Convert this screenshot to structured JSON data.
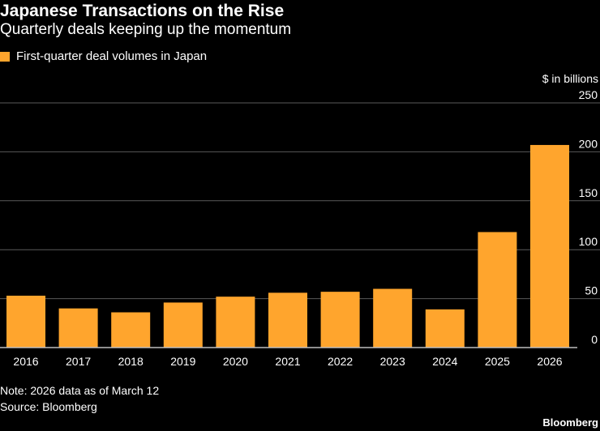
{
  "header": {
    "title": "Japanese Transactions on the Rise",
    "subtitle": "Quarterly deals keeping up the momentum"
  },
  "legend": {
    "label": "First-quarter deal volumes in Japan"
  },
  "footer": {
    "note": "Note: 2026 data as of March 12",
    "source": "Source: Bloomberg",
    "brand": "Bloomberg"
  },
  "colors": {
    "background": "#000000",
    "bar": "#FFA52D",
    "grid": "#5a5a5a",
    "text": "#ffffff"
  },
  "chart_data": {
    "type": "bar",
    "title": "Japanese Transactions on the Rise",
    "subtitle": "Quarterly deals keeping up the momentum",
    "ylabel": "$ in billions",
    "xlabel": "",
    "categories": [
      "2016",
      "2017",
      "2018",
      "2019",
      "2020",
      "2021",
      "2022",
      "2023",
      "2024",
      "2025",
      "2026"
    ],
    "series": [
      {
        "name": "First-quarter deal volumes in Japan",
        "values": [
          53,
          40,
          36,
          46,
          52,
          56,
          57,
          60,
          39,
          118,
          207
        ]
      }
    ],
    "ylim": [
      0,
      250
    ],
    "yticks": [
      0,
      50,
      100,
      150,
      200,
      250
    ],
    "y_axis_side": "right",
    "grid": true,
    "legend_position": "top-left"
  }
}
